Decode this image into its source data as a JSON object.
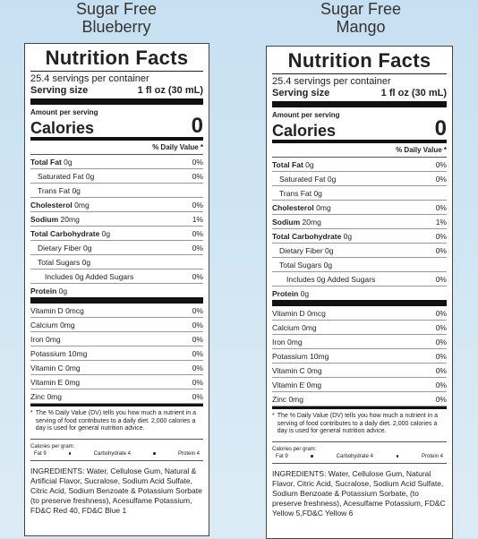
{
  "panels": [
    {
      "title_lines": [
        "Sugar Free",
        "Blueberry"
      ],
      "label": {
        "heading": "Nutrition Facts",
        "servings": "25.4 servings per container",
        "serving_size_label": "Serving size",
        "serving_size": "1 fl oz (30 mL)",
        "amount_label": "Amount per serving",
        "calories_label": "Calories",
        "calories": "0",
        "dv_header": "% Daily Value *",
        "nutrients": [
          {
            "name": "Total Fat",
            "amount": "0g",
            "dv": "0%",
            "bold": true,
            "level": 0
          },
          {
            "name": "Saturated Fat",
            "amount": "0g",
            "dv": "0%",
            "bold": false,
            "level": 1
          },
          {
            "name": "Trans Fat",
            "amount": "0g",
            "dv": null,
            "bold": false,
            "level": 1
          },
          {
            "name": "Cholesterol",
            "amount": "0mg",
            "dv": "0%",
            "bold": true,
            "level": 0
          },
          {
            "name": "Sodium",
            "amount": "20mg",
            "dv": "1%",
            "bold": true,
            "level": 0
          },
          {
            "name": "Total Carbohydrate",
            "amount": "0g",
            "dv": "0%",
            "bold": true,
            "level": 0
          },
          {
            "name": "Dietary Fiber",
            "amount": "0g",
            "dv": "0%",
            "bold": false,
            "level": 1
          },
          {
            "name": "Total Sugars",
            "amount": "0g",
            "dv": null,
            "bold": false,
            "level": 1
          },
          {
            "name": "Includes 0g Added Sugars",
            "amount": null,
            "dv": "0%",
            "bold": false,
            "level": 2
          },
          {
            "name": "Protein",
            "amount": "0g",
            "dv": null,
            "bold": true,
            "level": 0
          }
        ],
        "vitamins": [
          {
            "name": "Vitamin D",
            "amount": "0mcg",
            "dv": "0%"
          },
          {
            "name": "Calcium",
            "amount": "0mg",
            "dv": "0%"
          },
          {
            "name": "Iron",
            "amount": "0mg",
            "dv": "0%"
          },
          {
            "name": "Potassium",
            "amount": "10mg",
            "dv": "0%"
          },
          {
            "name": "Vitamin C",
            "amount": "0mg",
            "dv": "0%"
          },
          {
            "name": "Vitamin E",
            "amount": "0mg",
            "dv": "0%"
          },
          {
            "name": "Zinc",
            "amount": "0mg",
            "dv": "0%"
          }
        ],
        "footnote_mark": "*",
        "footnote": "The % Daily Value (DV) tells you how much a nutrient in a serving of food contributes to a daily diet. 2,000 calories a day is used for general nutrition advice.",
        "calories_per_gram": {
          "label": "Calories per gram:",
          "items": [
            "Fat 9",
            "Carbohydrate 4",
            "Protein 4"
          ]
        },
        "ingredients": "INGREDIENTS: Water, Cellulose Gum, Natural & Artificial Flavor, Sucralose, Sodium Acid Sulfate, Citric Acid, Sodium Benzoate & Potassium Sorbate (to preserve freshness), Acesulfame Potassium, FD&C Red 40, FD&C Blue 1"
      }
    },
    {
      "title_lines": [
        "Sugar Free",
        "Mango"
      ],
      "label": {
        "heading": "Nutrition Facts",
        "servings": "25.4 servings per container",
        "serving_size_label": "Serving size",
        "serving_size": "1 fl oz (30 mL)",
        "amount_label": "Amount per serving",
        "calories_label": "Calories",
        "calories": "0",
        "dv_header": "% Daily Value *",
        "nutrients": [
          {
            "name": "Total Fat",
            "amount": "0g",
            "dv": "0%",
            "bold": true,
            "level": 0
          },
          {
            "name": "Saturated Fat",
            "amount": "0g",
            "dv": "0%",
            "bold": false,
            "level": 1
          },
          {
            "name": "Trans Fat",
            "amount": "0g",
            "dv": null,
            "bold": false,
            "level": 1
          },
          {
            "name": "Cholesterol",
            "amount": "0mg",
            "dv": "0%",
            "bold": true,
            "level": 0
          },
          {
            "name": "Sodium",
            "amount": "20mg",
            "dv": "1%",
            "bold": true,
            "level": 0
          },
          {
            "name": "Total Carbohydrate",
            "amount": "0g",
            "dv": "0%",
            "bold": true,
            "level": 0
          },
          {
            "name": "Dietary Fiber",
            "amount": "0g",
            "dv": "0%",
            "bold": false,
            "level": 1
          },
          {
            "name": "Total Sugars",
            "amount": "0g",
            "dv": null,
            "bold": false,
            "level": 1
          },
          {
            "name": "Includes 0g Added Sugars",
            "amount": null,
            "dv": "0%",
            "bold": false,
            "level": 2
          },
          {
            "name": "Protein",
            "amount": "0g",
            "dv": null,
            "bold": true,
            "level": 0
          }
        ],
        "vitamins": [
          {
            "name": "Vitamin D",
            "amount": "0mcg",
            "dv": "0%"
          },
          {
            "name": "Calcium",
            "amount": "0mg",
            "dv": "0%"
          },
          {
            "name": "Iron",
            "amount": "0mg",
            "dv": "0%"
          },
          {
            "name": "Potassium",
            "amount": "10mg",
            "dv": "0%"
          },
          {
            "name": "Vitamin C",
            "amount": "0mg",
            "dv": "0%"
          },
          {
            "name": "Vitamin E",
            "amount": "0mg",
            "dv": "0%"
          },
          {
            "name": "Zinc",
            "amount": "0mg",
            "dv": "0%"
          }
        ],
        "footnote_mark": "*",
        "footnote": "The % Daily Value (DV) tells you how much a nutrient in a serving of food contributes to a daily diet. 2,000 calories a day is used for general nutrition advice.",
        "calories_per_gram": {
          "label": "Calories per gram:",
          "items": [
            "Fat 9",
            "Carbohydrate 4",
            "Protein 4"
          ]
        },
        "ingredients": "INGREDIENTS: Water, Cellulose Gum, Natural Flavor, Citric Acid, Sucralose, Sodium Acid Sulfate, Sodium Benzoate & Potassium Sorbate, (to preserve freshness), Acesulfame Potassium, FD&C Yellow 5,FD&C Yellow 6"
      }
    }
  ]
}
